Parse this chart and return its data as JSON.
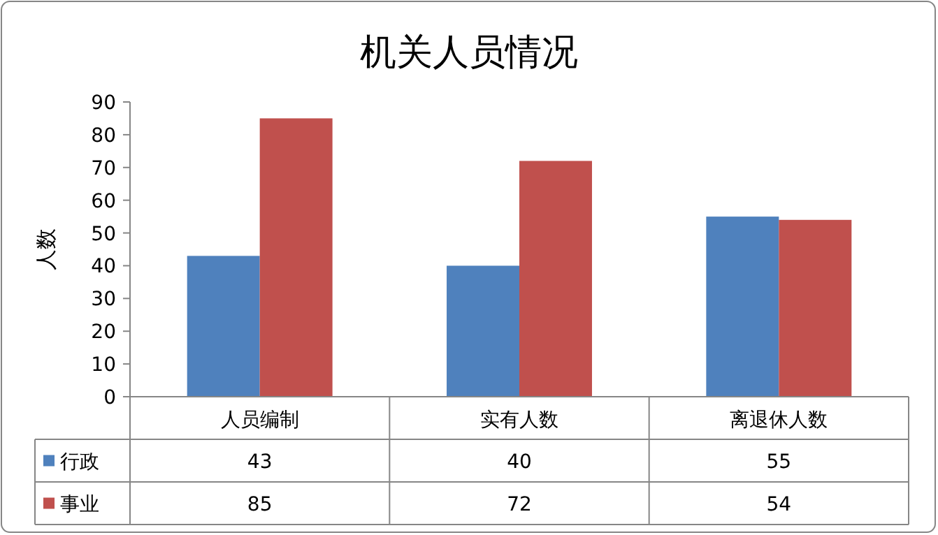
{
  "chart_data": {
    "type": "bar",
    "title": "机关人员情况",
    "ylabel": "人数",
    "categories": [
      "人员编制",
      "实有人数",
      "离退休人数"
    ],
    "series": [
      {
        "name": "行政",
        "color": "#4f81bd",
        "values": [
          43,
          40,
          55
        ]
      },
      {
        "name": "事业",
        "color": "#c0504d",
        "values": [
          85,
          72,
          54
        ]
      }
    ],
    "ylim": [
      0,
      90
    ],
    "yticks": [
      0,
      10,
      20,
      30,
      40,
      50,
      60,
      70,
      80,
      90
    ],
    "data_labels": true,
    "legend": "bottom",
    "grid": false
  }
}
